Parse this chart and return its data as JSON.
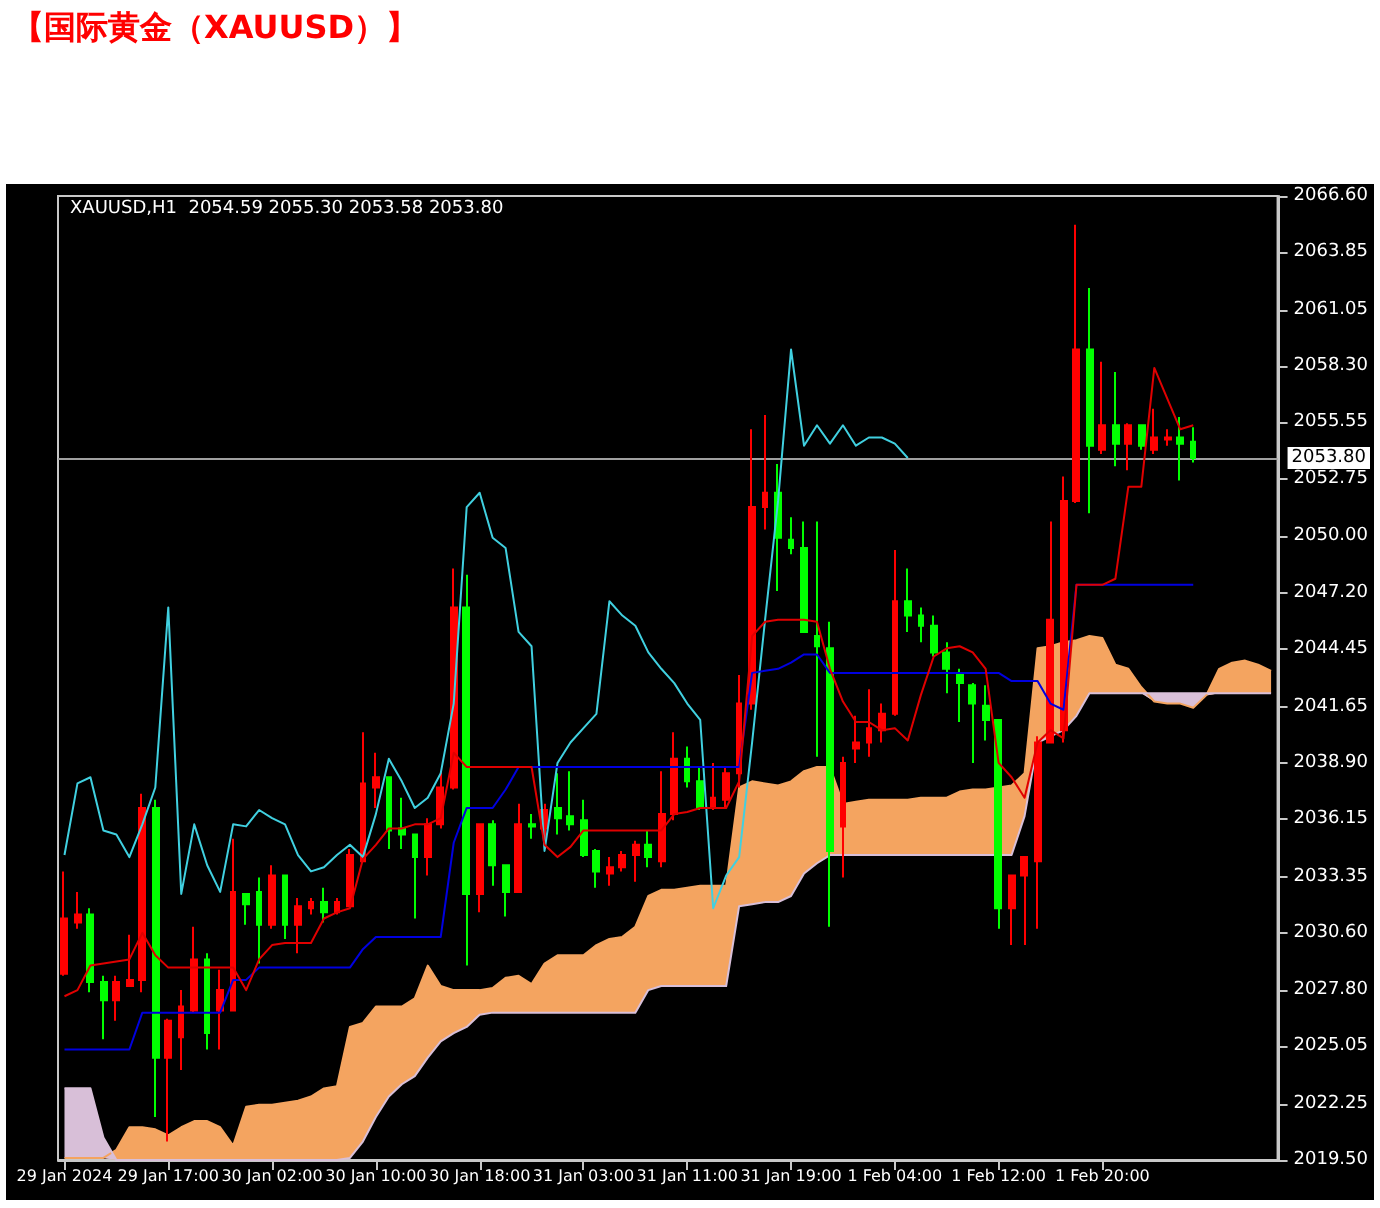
{
  "chart_data": {
    "type": "candlestick",
    "title": "【国际黄金（XAUUSD）】",
    "annotations": [
      "XAUUSD,H1  2054.59 2055.30 2053.58 2053.80"
    ],
    "categories": [
      "29 Jan 2024",
      null,
      null,
      null,
      null,
      null,
      null,
      null,
      "29 Jan 17:00",
      null,
      null,
      null,
      null,
      null,
      null,
      null,
      "30 Jan 02:00",
      null,
      null,
      null,
      null,
      null,
      null,
      null,
      "30 Jan 10:00",
      null,
      null,
      null,
      null,
      null,
      null,
      null,
      "30 Jan 18:00",
      null,
      null,
      null,
      null,
      null,
      null,
      null,
      "31 Jan 03:00",
      null,
      null,
      null,
      null,
      null,
      null,
      null,
      "31 Jan 11:00",
      null,
      null,
      null,
      null,
      null,
      null,
      null,
      "31 Jan 19:00",
      null,
      null,
      null,
      null,
      null,
      null,
      null,
      "1 Feb 04:00",
      null,
      null,
      null,
      null,
      null,
      null,
      null,
      "1 Feb 12:00",
      null,
      null,
      null,
      null,
      null,
      null,
      null,
      "1 Feb 20:00",
      null,
      null,
      null,
      null,
      null,
      null,
      null,
      null,
      null,
      null,
      null,
      null,
      null
    ],
    "ohlc": [
      [
        2028.6,
        2033.6,
        2028.5,
        2031.3
      ],
      [
        2031.1,
        2032.6,
        2030.8,
        2031.5
      ],
      [
        2031.5,
        2031.8,
        2027.7,
        2028.2
      ],
      [
        2028.2,
        2028.5,
        2025.4,
        2027.3
      ],
      [
        2027.3,
        2028.5,
        2026.3,
        2028.2
      ],
      [
        2028.0,
        2030.5,
        2028.0,
        2028.3
      ],
      [
        2028.3,
        2037.4,
        2027.7,
        2036.7
      ],
      [
        2036.7,
        2037.1,
        2021.6,
        2024.5
      ],
      [
        2024.5,
        2026.4,
        2020.4,
        2026.3
      ],
      [
        2025.5,
        2027.8,
        2023.9,
        2027.0
      ],
      [
        2026.8,
        2030.9,
        2026.7,
        2029.3
      ],
      [
        2029.3,
        2029.6,
        2024.9,
        2025.7
      ],
      [
        2026.8,
        2028.8,
        2024.9,
        2027.8
      ],
      [
        2026.8,
        2035.2,
        2026.8,
        2032.6
      ],
      [
        2032.5,
        2032.5,
        2031.0,
        2032.0
      ],
      [
        2032.6,
        2033.3,
        2029.1,
        2031.0
      ],
      [
        2031.0,
        2033.9,
        2030.8,
        2033.4
      ],
      [
        2033.4,
        2033.4,
        2030.3,
        2031.0
      ],
      [
        2031.0,
        2032.3,
        2029.6,
        2031.9
      ],
      [
        2031.8,
        2032.3,
        2031.5,
        2032.1
      ],
      [
        2032.1,
        2032.8,
        2031.1,
        2031.6
      ],
      [
        2031.6,
        2032.3,
        2031.5,
        2032.1
      ],
      [
        2031.9,
        2034.7,
        2031.9,
        2034.4
      ],
      [
        2034.1,
        2040.4,
        2034.1,
        2037.9
      ],
      [
        2037.7,
        2039.4,
        2036.7,
        2038.2
      ],
      [
        2038.2,
        2038.2,
        2034.7,
        2035.6
      ],
      [
        2035.7,
        2037.2,
        2034.7,
        2035.4
      ],
      [
        2035.4,
        2035.4,
        2031.3,
        2034.3
      ],
      [
        2034.3,
        2036.2,
        2033.4,
        2035.9
      ],
      [
        2035.9,
        2038.5,
        2035.7,
        2037.7
      ],
      [
        2037.7,
        2048.4,
        2037.6,
        2046.5
      ],
      [
        2046.5,
        2048.1,
        2029.0,
        2032.5
      ],
      [
        2032.5,
        2035.9,
        2031.6,
        2035.9
      ],
      [
        2035.9,
        2036.1,
        2032.9,
        2033.9
      ],
      [
        2033.9,
        2033.9,
        2031.4,
        2032.6
      ],
      [
        2032.6,
        2036.9,
        2032.6,
        2035.9
      ],
      [
        2035.9,
        2036.4,
        2035.2,
        2035.8
      ],
      [
        2035.7,
        2036.9,
        2034.7,
        2036.6
      ],
      [
        2036.7,
        2038.4,
        2035.4,
        2036.2
      ],
      [
        2036.3,
        2038.5,
        2035.6,
        2035.9
      ],
      [
        2036.1,
        2037.1,
        2034.3,
        2034.4
      ],
      [
        2034.6,
        2034.7,
        2032.8,
        2033.6
      ],
      [
        2033.5,
        2034.3,
        2032.9,
        2033.8
      ],
      [
        2033.8,
        2034.6,
        2033.6,
        2034.4
      ],
      [
        2034.4,
        2035.1,
        2033.1,
        2034.9
      ],
      [
        2034.9,
        2035.6,
        2033.8,
        2034.3
      ],
      [
        2034.1,
        2038.5,
        2033.8,
        2036.4
      ],
      [
        2036.4,
        2040.4,
        2036.1,
        2039.1
      ],
      [
        2039.1,
        2039.7,
        2037.7,
        2038.0
      ],
      [
        2038.0,
        2038.7,
        2036.6,
        2036.7
      ],
      [
        2036.7,
        2038.9,
        2036.6,
        2037.2
      ],
      [
        2037.1,
        2038.7,
        2036.7,
        2038.4
      ],
      [
        2038.4,
        2043.2,
        2037.7,
        2041.8
      ],
      [
        2041.8,
        2055.2,
        2041.5,
        2051.4
      ],
      [
        2051.4,
        2055.9,
        2050.3,
        2052.1
      ],
      [
        2052.1,
        2053.5,
        2047.3,
        2049.9
      ],
      [
        2049.8,
        2050.9,
        2049.1,
        2049.4
      ],
      [
        2049.4,
        2050.7,
        2045.3,
        2045.3
      ],
      [
        2045.1,
        2050.7,
        2039.2,
        2044.6
      ],
      [
        2044.5,
        2045.8,
        2030.9,
        2034.6
      ],
      [
        2035.8,
        2039.2,
        2033.3,
        2038.9
      ],
      [
        2039.6,
        2041.2,
        2038.9,
        2039.9
      ],
      [
        2039.9,
        2042.5,
        2039.2,
        2040.6
      ],
      [
        2040.5,
        2041.8,
        2039.9,
        2041.3
      ],
      [
        2041.3,
        2049.3,
        2041.2,
        2046.8
      ],
      [
        2046.8,
        2048.4,
        2045.3,
        2046.1
      ],
      [
        2046.1,
        2046.5,
        2044.8,
        2045.6
      ],
      [
        2045.6,
        2046.1,
        2044.1,
        2044.3
      ],
      [
        2044.3,
        2044.8,
        2042.3,
        2043.5
      ],
      [
        2043.3,
        2043.5,
        2040.9,
        2042.8
      ],
      [
        2042.7,
        2042.8,
        2038.9,
        2041.8
      ],
      [
        2041.7,
        2042.7,
        2040.0,
        2041.0
      ],
      [
        2041.0,
        2041.0,
        2030.8,
        2031.8
      ],
      [
        2031.8,
        2033.4,
        2030.0,
        2033.4
      ],
      [
        2033.4,
        2034.3,
        2030.0,
        2034.3
      ],
      [
        2034.1,
        2040.2,
        2030.8,
        2039.9
      ],
      [
        2039.9,
        2050.7,
        2039.9,
        2045.9
      ],
      [
        2040.5,
        2052.9,
        2039.9,
        2051.7
      ],
      [
        2051.7,
        2065.2,
        2051.6,
        2059.1
      ],
      [
        2059.1,
        2062.1,
        2051.1,
        2054.4
      ],
      [
        2054.2,
        2058.5,
        2054.0,
        2055.4
      ],
      [
        2055.4,
        2058.0,
        2053.4,
        2054.5
      ],
      [
        2054.5,
        2055.5,
        2053.2,
        2055.4
      ],
      [
        2055.4,
        2055.4,
        2054.2,
        2054.4
      ],
      [
        2054.2,
        2056.2,
        2054.0,
        2054.8
      ],
      [
        2054.7,
        2055.2,
        2054.4,
        2054.8
      ],
      [
        2054.8,
        2055.8,
        2052.7,
        2054.5
      ],
      [
        2054.59,
        2055.3,
        2053.58,
        2053.8
      ],
      null,
      null,
      null,
      null,
      null,
      null
    ],
    "colors": [
      "#ff0000",
      "#ff0000",
      "#00ff00",
      "#00ff00",
      "#ff0000",
      "#ff0000",
      "#ff0000",
      "#00ff00",
      "#ff0000",
      "#ff0000",
      "#ff0000",
      "#00ff00",
      "#ff0000",
      "#ff0000",
      "#00ff00",
      "#00ff00",
      "#ff0000",
      "#00ff00",
      "#ff0000",
      "#ff0000",
      "#00ff00",
      "#ff0000",
      "#ff0000",
      "#ff0000",
      "#ff0000",
      "#00ff00",
      "#00ff00",
      "#00ff00",
      "#ff0000",
      "#ff0000",
      "#ff0000",
      "#00ff00",
      "#ff0000",
      "#00ff00",
      "#00ff00",
      "#ff0000",
      "#00ff00",
      "#ff0000",
      "#00ff00",
      "#00ff00",
      "#00ff00",
      "#00ff00",
      "#ff0000",
      "#ff0000",
      "#ff0000",
      "#00ff00",
      "#ff0000",
      "#ff0000",
      "#00ff00",
      "#00ff00",
      "#ff0000",
      "#ff0000",
      "#ff0000",
      "#ff0000",
      "#ff0000",
      "#00ff00",
      "#00ff00",
      "#00ff00",
      "#00ff00",
      "#00ff00",
      "#ff0000",
      "#ff0000",
      "#ff0000",
      "#ff0000",
      "#ff0000",
      "#00ff00",
      "#00ff00",
      "#00ff00",
      "#00ff00",
      "#00ff00",
      "#00ff00",
      "#00ff00",
      "#00ff00",
      "#ff0000",
      "#ff0000",
      "#ff0000",
      "#ff0000",
      "#ff0000",
      "#ff0000",
      "#00ff00",
      "#ff0000",
      "#00ff00",
      "#ff0000",
      "#00ff00",
      "#ff0000",
      "#ff0000",
      "#00ff00",
      "#00ff00",
      null,
      null,
      null,
      null,
      null,
      null
    ],
    "series": [
      {
        "type": "area",
        "color": "#f4a460",
        "values": [
          2019.6,
          2019.6,
          2019.6,
          2019.6,
          2020.0,
          2021.1,
          2021.1,
          2021.0,
          2020.7,
          2021.1,
          2021.4,
          2021.4,
          2021.1,
          2020.2,
          2022.1,
          2022.2,
          2022.2,
          2022.3,
          2022.4,
          2022.6,
          2023.0,
          2023.1,
          2026.0,
          2026.2,
          2027.0,
          2027.0,
          2027.0,
          2027.4,
          2029.0,
          2028.0,
          2027.8,
          2027.8,
          2027.8,
          2027.9,
          2028.4,
          2028.5,
          2028.1,
          2029.1,
          2029.5,
          2029.5,
          2029.5,
          2030.0,
          2030.3,
          2030.4,
          2030.9,
          2032.4,
          2032.7,
          2032.7,
          2032.8,
          2032.9,
          2032.9,
          2032.9,
          2037.7,
          2038.0,
          2037.9,
          2037.8,
          2038.0,
          2038.5,
          2038.7,
          2038.7,
          2036.9,
          2037.0,
          2037.1,
          2037.1,
          2037.1,
          2037.1,
          2037.2,
          2037.2,
          2037.2,
          2037.5,
          2037.6,
          2037.6,
          2037.7,
          2037.8,
          2038.4,
          2044.5,
          2044.6,
          2044.8,
          2044.9,
          2045.1,
          2045.0,
          2043.7,
          2043.5,
          2042.6,
          2041.9,
          2041.8,
          2041.8,
          2041.6,
          2042.2,
          2043.5,
          2043.8,
          2043.9,
          2043.7,
          2043.4
        ]
      },
      {
        "type": "area",
        "color": "#d8bfd8",
        "values": [
          2023.0,
          2023.0,
          2023.0,
          2020.6,
          2019.5,
          2019.5,
          2019.5,
          2019.5,
          2019.5,
          2019.5,
          2019.5,
          2019.5,
          2019.5,
          2019.5,
          2019.5,
          2019.5,
          2019.5,
          2019.5,
          2019.5,
          2019.5,
          2019.5,
          2019.5,
          2019.6,
          2020.4,
          2021.6,
          2022.6,
          2023.2,
          2023.6,
          2024.5,
          2025.3,
          2025.7,
          2026.0,
          2026.6,
          2026.7,
          2026.7,
          2026.7,
          2026.7,
          2026.7,
          2026.7,
          2026.7,
          2026.7,
          2026.7,
          2026.7,
          2026.7,
          2026.7,
          2027.8,
          2028.0,
          2028.0,
          2028.0,
          2028.0,
          2028.0,
          2028.0,
          2031.9,
          2032.0,
          2032.1,
          2032.1,
          2032.4,
          2033.5,
          2034.0,
          2034.4,
          2034.4,
          2034.4,
          2034.4,
          2034.4,
          2034.4,
          2034.4,
          2034.4,
          2034.4,
          2034.4,
          2034.4,
          2034.4,
          2034.4,
          2034.4,
          2034.4,
          2036.3,
          2039.9,
          2040.2,
          2040.5,
          2041.2,
          2042.3,
          2042.3,
          2042.3,
          2042.3,
          2042.3,
          2042.3,
          2042.3,
          2042.3,
          2042.3,
          2042.3,
          2042.3,
          2042.3,
          2042.3,
          2042.3,
          2042.3
        ]
      },
      {
        "type": "line",
        "color": "#40d0e0",
        "values": [
          2034.4,
          2037.9,
          2038.2,
          2035.6,
          2035.4,
          2034.3,
          2035.9,
          2037.7,
          2046.5,
          2032.5,
          2035.9,
          2033.9,
          2032.6,
          2035.9,
          2035.8,
          2036.6,
          2036.2,
          2035.9,
          2034.4,
          2033.6,
          2033.8,
          2034.4,
          2034.9,
          2034.3,
          2036.4,
          2039.1,
          2038.0,
          2036.7,
          2037.2,
          2038.4,
          2041.8,
          2051.4,
          2052.1,
          2049.9,
          2049.4,
          2045.3,
          2044.6,
          2034.6,
          2038.9,
          2039.9,
          2040.6,
          2041.3,
          2046.8,
          2046.1,
          2045.6,
          2044.3,
          2043.5,
          2042.8,
          2041.8,
          2041.0,
          2031.8,
          2033.4,
          2034.3,
          2039.9,
          2045.9,
          2051.7,
          2059.1,
          2054.4,
          2055.4,
          2054.5,
          2055.4,
          2054.4,
          2054.8,
          2054.8,
          2054.5,
          2053.8,
          null,
          null,
          null,
          null,
          null,
          null,
          null,
          null,
          null,
          null,
          null,
          null,
          null,
          null,
          null,
          null,
          null,
          null,
          null,
          null,
          null,
          null,
          null,
          null,
          null,
          null,
          null,
          null
        ]
      },
      {
        "type": "line",
        "color": "#0000e0",
        "values": [
          2024.9,
          2024.9,
          2024.9,
          2024.9,
          2024.9,
          2024.9,
          2026.7,
          2026.7,
          2026.7,
          2026.7,
          2026.7,
          2026.7,
          2026.7,
          2028.3,
          2028.3,
          2028.9,
          2028.9,
          2028.9,
          2028.9,
          2028.9,
          2028.9,
          2028.9,
          2028.9,
          2029.8,
          2030.4,
          2030.4,
          2030.4,
          2030.4,
          2030.4,
          2030.4,
          2035.0,
          2036.7,
          2036.7,
          2036.7,
          2037.6,
          2038.7,
          2038.7,
          2038.7,
          2038.7,
          2038.7,
          2038.7,
          2038.7,
          2038.7,
          2038.7,
          2038.7,
          2038.7,
          2038.7,
          2038.7,
          2038.7,
          2038.7,
          2038.7,
          2038.7,
          2038.7,
          2043.3,
          2043.4,
          2043.5,
          2043.8,
          2044.2,
          2044.2,
          2043.3,
          2043.3,
          2043.3,
          2043.3,
          2043.3,
          2043.3,
          2043.3,
          2043.3,
          2043.3,
          2043.3,
          2043.3,
          2043.3,
          2043.3,
          2043.3,
          2042.9,
          2042.9,
          2042.9,
          2041.8,
          2041.5,
          2047.6,
          2047.6,
          2047.6,
          2047.6,
          2047.6,
          2047.6,
          2047.6,
          2047.6,
          2047.6,
          2047.6,
          null,
          null,
          null,
          null,
          null,
          null
        ]
      },
      {
        "type": "line",
        "color": "#e00000",
        "values": [
          2027.5,
          2027.8,
          2029.0,
          2029.1,
          2029.2,
          2029.3,
          2030.6,
          2029.5,
          2028.9,
          2028.9,
          2028.9,
          2028.9,
          2028.9,
          2028.9,
          2027.8,
          2029.3,
          2030.0,
          2030.1,
          2030.1,
          2030.1,
          2031.3,
          2031.6,
          2031.8,
          2034.2,
          2034.9,
          2035.7,
          2035.7,
          2035.9,
          2035.9,
          2036.2,
          2039.4,
          2038.7,
          2038.7,
          2038.7,
          2038.7,
          2038.7,
          2038.7,
          2034.9,
          2034.3,
          2034.8,
          2035.6,
          2035.6,
          2035.6,
          2035.6,
          2035.6,
          2035.6,
          2035.6,
          2036.4,
          2036.5,
          2036.7,
          2036.7,
          2036.7,
          2038.0,
          2045.1,
          2045.8,
          2045.9,
          2045.9,
          2045.9,
          2045.8,
          2043.5,
          2041.9,
          2040.9,
          2040.9,
          2040.5,
          2040.6,
          2040.0,
          2042.2,
          2044.1,
          2044.5,
          2044.6,
          2044.3,
          2043.5,
          2038.9,
          2038.2,
          2037.2,
          2039.9,
          2040.5,
          2040.1,
          2047.6,
          2047.6,
          2047.6,
          2047.9,
          2052.4,
          2052.4,
          2058.2,
          2056.7,
          2055.2,
          2055.4,
          null,
          null,
          null,
          null,
          null,
          null
        ]
      }
    ],
    "ylim": [
      2019.5,
      2066.6
    ],
    "yticks": [
      {
        "value": 2019.5,
        "label": "2019.50"
      },
      2022.25,
      2025.05,
      {
        "value": 2027.8,
        "label": "2027.80"
      },
      {
        "value": 2030.6,
        "label": "2030.60"
      },
      2033.35,
      2036.15,
      {
        "value": 2038.9,
        "label": "2038.90"
      },
      2041.65,
      2044.45,
      {
        "value": 2047.2,
        "label": "2047.20"
      },
      {
        "value": 2050,
        "label": "2050.00"
      },
      2052.75,
      2055.55,
      {
        "value": 2058.3,
        "label": "2058.30"
      },
      2061.05,
      2063.85,
      {
        "value": 2066.6,
        "label": "2066.60"
      }
    ],
    "ref_lines": [
      {
        "axis": "y",
        "value": 2053.8,
        "label": "2053.80",
        "color": "#a0a0a0"
      }
    ],
    "grid": false,
    "marker": "none"
  }
}
